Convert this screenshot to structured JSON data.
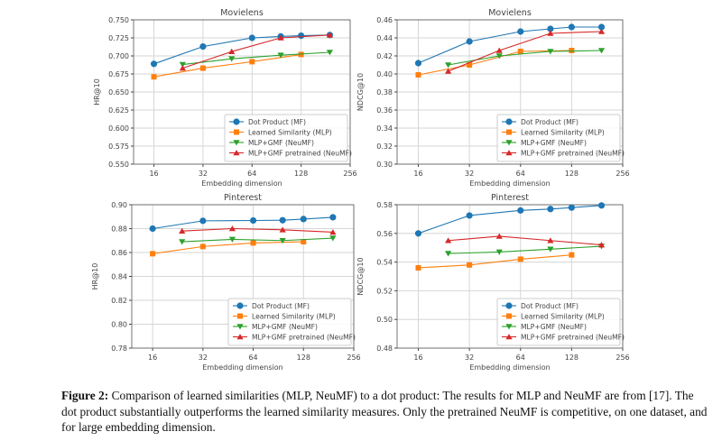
{
  "figure": {
    "caption_label": "Figure 2:",
    "caption_text": "Comparison of learned similarities (MLP, NeuMF) to a dot product: The results for MLP and NeuMF are from [17]. The dot product substantially outperforms the learned similarity measures. Only the pretrained NeuMF is competitive, on one dataset, and for large embedding dimension."
  },
  "colors": {
    "dot_product": "#1f77b4",
    "learned_similarity": "#ff7f0e",
    "neumf": "#2ca02c",
    "neumf_pretrained": "#d62728"
  },
  "chart_data": [
    {
      "type": "line",
      "title": "Movielens",
      "xlabel": "Embedding dimension",
      "ylabel": "HR@10",
      "xscale": "log2",
      "xlim": [
        12,
        256
      ],
      "xticks": [
        16,
        32,
        64,
        128,
        256
      ],
      "ylim": [
        0.55,
        0.75
      ],
      "yticks": [
        "0.550",
        "0.575",
        "0.600",
        "0.625",
        "0.650",
        "0.675",
        "0.700",
        "0.725",
        "0.750"
      ],
      "grid": true,
      "legend": "lower-right",
      "series": [
        {
          "name": "Dot Product (MF)",
          "marker": "circle",
          "x": [
            16,
            32,
            64,
            96,
            128,
            192
          ],
          "y": [
            0.689,
            0.713,
            0.725,
            0.727,
            0.728,
            0.729
          ]
        },
        {
          "name": "Learned Similarity (MLP)",
          "marker": "square",
          "x": [
            16,
            32,
            64,
            128
          ],
          "y": [
            0.671,
            0.683,
            0.692,
            0.702
          ]
        },
        {
          "name": "MLP+GMF (NeuMF)",
          "marker": "triangle-down",
          "x": [
            24,
            48,
            96,
            192
          ],
          "y": [
            0.688,
            0.696,
            0.701,
            0.705
          ]
        },
        {
          "name": "MLP+GMF pretrained (NeuMF)",
          "marker": "triangle-up",
          "x": [
            24,
            48,
            96,
            192
          ],
          "y": [
            0.683,
            0.706,
            0.725,
            0.729
          ]
        }
      ]
    },
    {
      "type": "line",
      "title": "Movielens",
      "xlabel": "Embedding dimension",
      "ylabel": "NDCG@10",
      "xscale": "log2",
      "xlim": [
        12,
        256
      ],
      "xticks": [
        16,
        32,
        64,
        128,
        256
      ],
      "ylim": [
        0.3,
        0.46
      ],
      "yticks": [
        "0.30",
        "0.32",
        "0.34",
        "0.36",
        "0.38",
        "0.40",
        "0.42",
        "0.44",
        "0.46"
      ],
      "grid": true,
      "legend": "lower-right",
      "series": [
        {
          "name": "Dot Product (MF)",
          "marker": "circle",
          "x": [
            16,
            32,
            64,
            96,
            128,
            192
          ],
          "y": [
            0.412,
            0.436,
            0.447,
            0.45,
            0.452,
            0.452
          ]
        },
        {
          "name": "Learned Similarity (MLP)",
          "marker": "square",
          "x": [
            16,
            32,
            64,
            128
          ],
          "y": [
            0.399,
            0.41,
            0.425,
            0.426
          ]
        },
        {
          "name": "MLP+GMF (NeuMF)",
          "marker": "triangle-down",
          "x": [
            24,
            48,
            96,
            192
          ],
          "y": [
            0.41,
            0.42,
            0.425,
            0.426
          ]
        },
        {
          "name": "MLP+GMF pretrained (NeuMF)",
          "marker": "triangle-up",
          "x": [
            24,
            48,
            96,
            192
          ],
          "y": [
            0.403,
            0.426,
            0.445,
            0.447
          ]
        }
      ]
    },
    {
      "type": "line",
      "title": "Pinterest",
      "xlabel": "Embedding dimension",
      "ylabel": "HR@10",
      "xscale": "log2",
      "xlim": [
        12,
        256
      ],
      "xticks": [
        16,
        32,
        64,
        128,
        256
      ],
      "ylim": [
        0.78,
        0.9
      ],
      "yticks": [
        "0.78",
        "0.80",
        "0.82",
        "0.84",
        "0.86",
        "0.88",
        "0.90"
      ],
      "grid": true,
      "legend": "lower-right",
      "series": [
        {
          "name": "Dot Product (MF)",
          "marker": "circle",
          "x": [
            16,
            32,
            64,
            96,
            128,
            192
          ],
          "y": [
            0.88,
            0.8865,
            0.8868,
            0.887,
            0.888,
            0.8895
          ]
        },
        {
          "name": "Learned Similarity (MLP)",
          "marker": "square",
          "x": [
            16,
            32,
            64,
            128
          ],
          "y": [
            0.859,
            0.865,
            0.868,
            0.869
          ]
        },
        {
          "name": "MLP+GMF (NeuMF)",
          "marker": "triangle-down",
          "x": [
            24,
            48,
            96,
            192
          ],
          "y": [
            0.869,
            0.871,
            0.87,
            0.872
          ]
        },
        {
          "name": "MLP+GMF pretrained (NeuMF)",
          "marker": "triangle-up",
          "x": [
            24,
            48,
            96,
            192
          ],
          "y": [
            0.878,
            0.88,
            0.879,
            0.877
          ]
        }
      ]
    },
    {
      "type": "line",
      "title": "Pinterest",
      "xlabel": "Embedding dimension",
      "ylabel": "NDCG@10",
      "xscale": "log2",
      "xlim": [
        12,
        256
      ],
      "xticks": [
        16,
        32,
        64,
        128,
        256
      ],
      "ylim": [
        0.48,
        0.58
      ],
      "yticks": [
        "0.48",
        "0.50",
        "0.52",
        "0.54",
        "0.56",
        "0.58"
      ],
      "grid": true,
      "legend": "lower-right",
      "series": [
        {
          "name": "Dot Product (MF)",
          "marker": "circle",
          "x": [
            16,
            32,
            64,
            96,
            128,
            192
          ],
          "y": [
            0.56,
            0.5725,
            0.576,
            0.577,
            0.578,
            0.5795
          ]
        },
        {
          "name": "Learned Similarity (MLP)",
          "marker": "square",
          "x": [
            16,
            32,
            64,
            128
          ],
          "y": [
            0.536,
            0.538,
            0.542,
            0.545
          ]
        },
        {
          "name": "MLP+GMF (NeuMF)",
          "marker": "triangle-down",
          "x": [
            24,
            48,
            96,
            192
          ],
          "y": [
            0.546,
            0.547,
            0.549,
            0.551
          ]
        },
        {
          "name": "MLP+GMF pretrained (NeuMF)",
          "marker": "triangle-up",
          "x": [
            24,
            48,
            96,
            192
          ],
          "y": [
            0.555,
            0.558,
            0.555,
            0.552
          ]
        }
      ]
    }
  ]
}
